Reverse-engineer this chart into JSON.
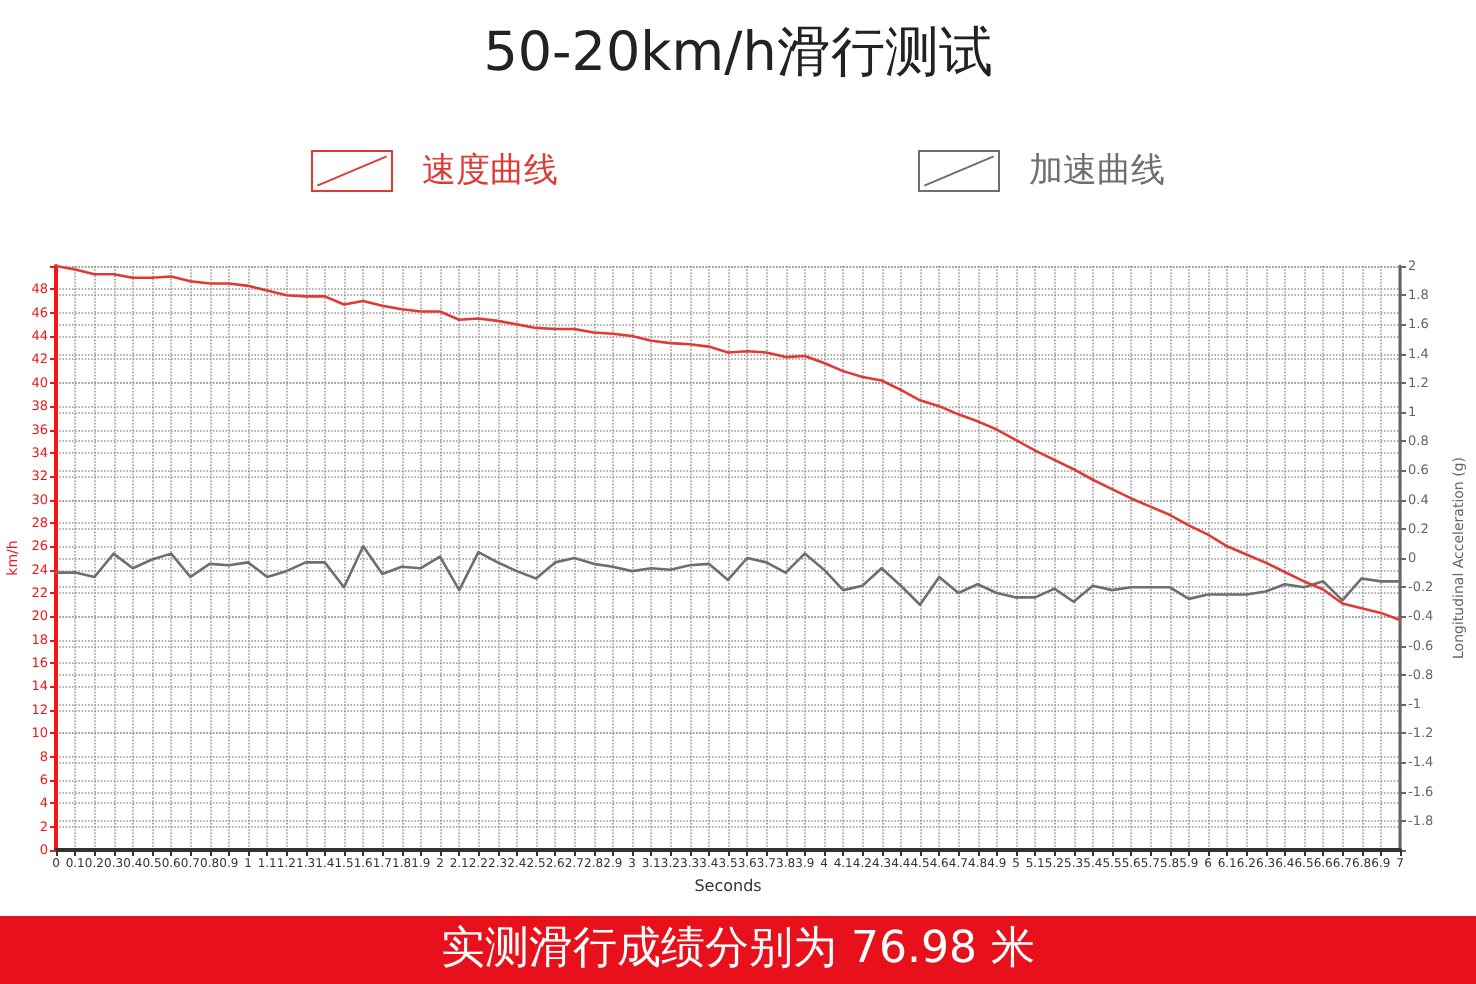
{
  "chart_data": {
    "type": "line",
    "title": "50-20km/h滑行测试",
    "xlabel": "Seconds",
    "ylabel": "km/h",
    "y2label": "Longitudinal Acceleration (g)",
    "x": [
      0,
      0.1,
      0.2,
      0.3,
      0.4,
      0.5,
      0.6,
      0.7,
      0.8,
      0.9,
      1,
      1.1,
      1.2,
      1.3,
      1.4,
      1.5,
      1.6,
      1.7,
      1.8,
      1.9,
      2,
      2.1,
      2.2,
      2.3,
      2.4,
      2.5,
      2.6,
      2.7,
      2.8,
      2.9,
      3,
      3.1,
      3.2,
      3.3,
      3.4,
      3.5,
      3.6,
      3.7,
      3.8,
      3.9,
      4,
      4.1,
      4.2,
      4.3,
      4.4,
      4.5,
      4.6,
      4.7,
      4.8,
      4.9,
      5,
      5.1,
      5.2,
      5.3,
      5.4,
      5.5,
      5.6,
      5.7,
      5.8,
      5.9,
      6,
      6.1,
      6.2,
      6.3,
      6.4,
      6.5,
      6.6,
      6.7,
      6.8,
      6.9,
      7
    ],
    "series": [
      {
        "name": "速度曲线",
        "color": "#e03a36",
        "values": [
          50,
          49.7,
          49.3,
          49.3,
          49.0,
          49.0,
          49.1,
          48.7,
          48.5,
          48.5,
          48.3,
          47.9,
          47.5,
          47.4,
          47.4,
          46.7,
          47.0,
          46.6,
          46.3,
          46.1,
          46.1,
          45.4,
          45.5,
          45.3,
          45.0,
          44.7,
          44.6,
          44.6,
          44.3,
          44.2,
          44.0,
          43.6,
          43.4,
          43.3,
          43.1,
          42.6,
          42.7,
          42.6,
          42.2,
          42.3,
          41.7,
          41.0,
          40.5,
          40.2,
          39.4,
          38.5,
          38.0,
          37.3,
          36.7,
          36.0,
          35.1,
          34.2,
          33.4,
          32.6,
          31.7,
          30.9,
          30.1,
          29.4,
          28.7,
          27.8,
          27.0,
          26.0,
          25.3,
          24.6,
          23.8,
          23.0,
          22.3,
          21.1,
          20.7,
          20.3,
          19.7
        ]
      },
      {
        "name": "加速曲线",
        "color": "#6e6e6e",
        "axis": "y2",
        "values": [
          -0.1,
          -0.1,
          -0.13,
          0.03,
          -0.07,
          -0.01,
          0.03,
          -0.13,
          -0.04,
          -0.05,
          -0.03,
          -0.13,
          -0.09,
          -0.03,
          -0.03,
          -0.2,
          0.08,
          -0.11,
          -0.06,
          -0.07,
          0.01,
          -0.22,
          0.04,
          -0.03,
          -0.09,
          -0.14,
          -0.03,
          0.0,
          -0.04,
          -0.06,
          -0.09,
          -0.07,
          -0.08,
          -0.05,
          -0.04,
          -0.15,
          0.0,
          -0.03,
          -0.1,
          0.03,
          -0.08,
          -0.22,
          -0.19,
          -0.07,
          -0.19,
          -0.32,
          -0.13,
          -0.24,
          -0.18,
          -0.24,
          -0.27,
          -0.27,
          -0.21,
          -0.3,
          -0.19,
          -0.22,
          -0.2,
          -0.2,
          -0.2,
          -0.28,
          -0.25,
          -0.25,
          -0.25,
          -0.23,
          -0.18,
          -0.2,
          -0.16,
          -0.29,
          -0.14,
          -0.16,
          -0.16
        ]
      }
    ],
    "xlim": [
      0,
      7
    ],
    "xticks": [
      0,
      0.1,
      0.2,
      0.3,
      0.4,
      0.5,
      0.6,
      0.7,
      0.8,
      0.9,
      1,
      1.1,
      1.2,
      1.3,
      1.4,
      1.5,
      1.6,
      1.7,
      1.8,
      1.9,
      2,
      2.1,
      2.2,
      2.3,
      2.4,
      2.5,
      2.6,
      2.7,
      2.8,
      2.9,
      3,
      3.1,
      3.2,
      3.3,
      3.4,
      3.5,
      3.6,
      3.7,
      3.8,
      3.9,
      4,
      4.1,
      4.2,
      4.3,
      4.4,
      4.5,
      4.6,
      4.7,
      4.8,
      4.9,
      5,
      5.1,
      5.2,
      5.3,
      5.4,
      5.5,
      5.6,
      5.7,
      5.8,
      5.9,
      6,
      6.1,
      6.2,
      6.3,
      6.4,
      6.5,
      6.6,
      6.7,
      6.8,
      6.9,
      7
    ],
    "ylim": [
      0,
      50
    ],
    "yticks": [
      0,
      2,
      4,
      6,
      8,
      10,
      12,
      14,
      16,
      18,
      20,
      22,
      24,
      26,
      28,
      30,
      32,
      34,
      36,
      38,
      40,
      42,
      44,
      46,
      48,
      {
        "value": 50,
        "label": null
      }
    ],
    "y2lim": [
      -2,
      2
    ],
    "y2ticks": [
      {
        "value": -2,
        "label": null
      },
      -1.8,
      -1.6,
      -1.4,
      -1.2,
      -1,
      -0.8,
      -0.6,
      -0.4,
      -0.2,
      0,
      0.2,
      0.4,
      0.6,
      0.8,
      1,
      1.2,
      1.4,
      1.6,
      1.8,
      2
    ],
    "grid": true,
    "legend": "top",
    "marker": "none",
    "line_style": "solid",
    "annotations": [
      "实测滑行成绩分别为 76.98 米"
    ]
  }
}
